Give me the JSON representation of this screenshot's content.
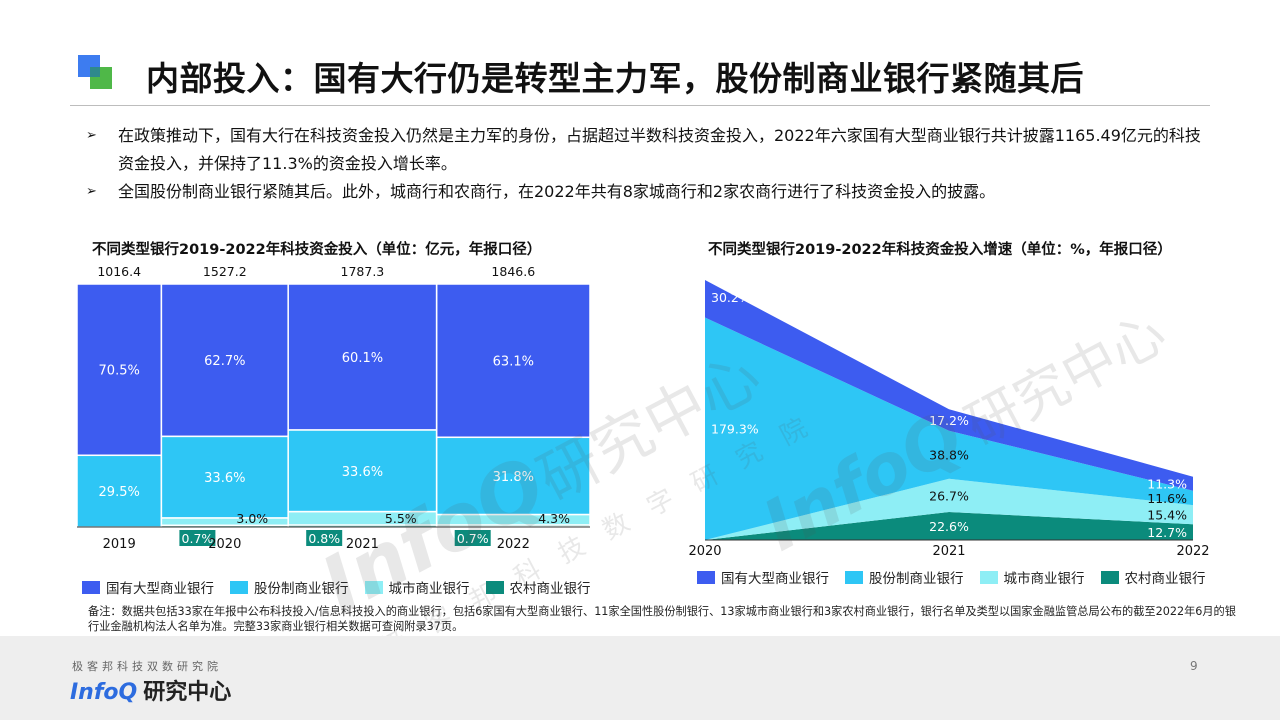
{
  "title": "内部投入：国有大行仍是转型主力军，股份制商业银行紧随其后",
  "bullets": [
    {
      "marker": "➢",
      "text": "在政策推动下，国有大行在科技资金投入仍然是主力军的身份，占据超过半数科技资金投入，2022年六家国有大型商业银行共计披露1165.49亿元的科技资金投入，并保持了11.3%的资金投入增长率。"
    },
    {
      "marker": "➢",
      "text": "全国股份制商业银行紧随其后。此外，城商行和农商行，在2022年共有8家城商行和2家农商行进行了科技资金投入的披露。"
    }
  ],
  "colors": {
    "state_owned": "#3d5cf0",
    "joint_stock": "#2ec6f5",
    "city": "#8eeef5",
    "rural": "#0b8b7c",
    "title_blue": "#3d7cf0",
    "title_green": "#4fb848"
  },
  "chart_data": [
    {
      "type": "bar",
      "title": "不同类型银行2019-2022年科技资金投入（单位：亿元，年报口径）",
      "categories": [
        "2019",
        "2020",
        "2021",
        "2022"
      ],
      "totals": [
        1016.4,
        1527.2,
        1787.3,
        1846.6
      ],
      "total_labels": [
        "1016.4",
        "1527.2",
        "1787.3",
        "1846.6"
      ],
      "series": [
        {
          "name": "国有大型商业银行",
          "values": [
            70.5,
            62.7,
            60.1,
            63.1
          ],
          "labels": [
            "70.5%",
            "62.7%",
            "60.1%",
            "63.1%"
          ]
        },
        {
          "name": "股份制商业银行",
          "values": [
            29.5,
            33.6,
            33.6,
            31.8
          ],
          "labels": [
            "29.5%",
            "33.6%",
            "33.6%",
            "31.8%"
          ]
        },
        {
          "name": "城市商业银行",
          "values": [
            0,
            3.0,
            5.5,
            4.3
          ],
          "labels": [
            "",
            "3.0%",
            "5.5%",
            "4.3%"
          ]
        },
        {
          "name": "农村商业银行",
          "values": [
            0,
            0.7,
            0.8,
            0.7
          ],
          "labels": [
            "",
            "0.7%",
            "0.8%",
            "0.7%"
          ]
        }
      ],
      "legend_position": "bottom"
    },
    {
      "type": "area",
      "title": "不同类型银行2019-2022年科技资金投入增速（单位：%，年报口径）",
      "x": [
        "2020",
        "2021",
        "2022"
      ],
      "stacked": true,
      "series": [
        {
          "name": "国有大型商业银行",
          "values": [
            30.2,
            17.2,
            11.3
          ],
          "labels": [
            "30.2%",
            "17.2%",
            "11.3%"
          ]
        },
        {
          "name": "股份制商业银行",
          "values": [
            179.3,
            38.8,
            11.6
          ],
          "labels": [
            "179.3%",
            "38.8%",
            "11.6%"
          ]
        },
        {
          "name": "城市商业银行",
          "values": [
            0,
            26.7,
            15.4
          ],
          "labels": [
            "",
            "26.7%",
            "15.4%"
          ]
        },
        {
          "name": "农村商业银行",
          "values": [
            0,
            22.6,
            12.7
          ],
          "labels": [
            "",
            "22.6%",
            "12.7%"
          ]
        }
      ],
      "legend_position": "bottom"
    }
  ],
  "note": "备注：数据共包括33家在年报中公布科技投入/信息科技投入的商业银行，包括6家国有大型商业银行、11家全国性股份制银行、13家城市商业银行和3家农村商业银行，银行名单及类型以国家金融监管总局公布的截至2022年6月的银行业金融机构法人名单为准。完整33家商业银行相关数据可查阅附录37页。",
  "watermark": {
    "brand": "InfoQ",
    "cn": "研究中心",
    "sub": "极 客 邦 科 技 数 字 研 究 院"
  },
  "footer": {
    "tagline": "极客邦科技双数研究院",
    "brand_en": "InfoQ",
    "brand_cn": "研究中心",
    "page": "9"
  }
}
